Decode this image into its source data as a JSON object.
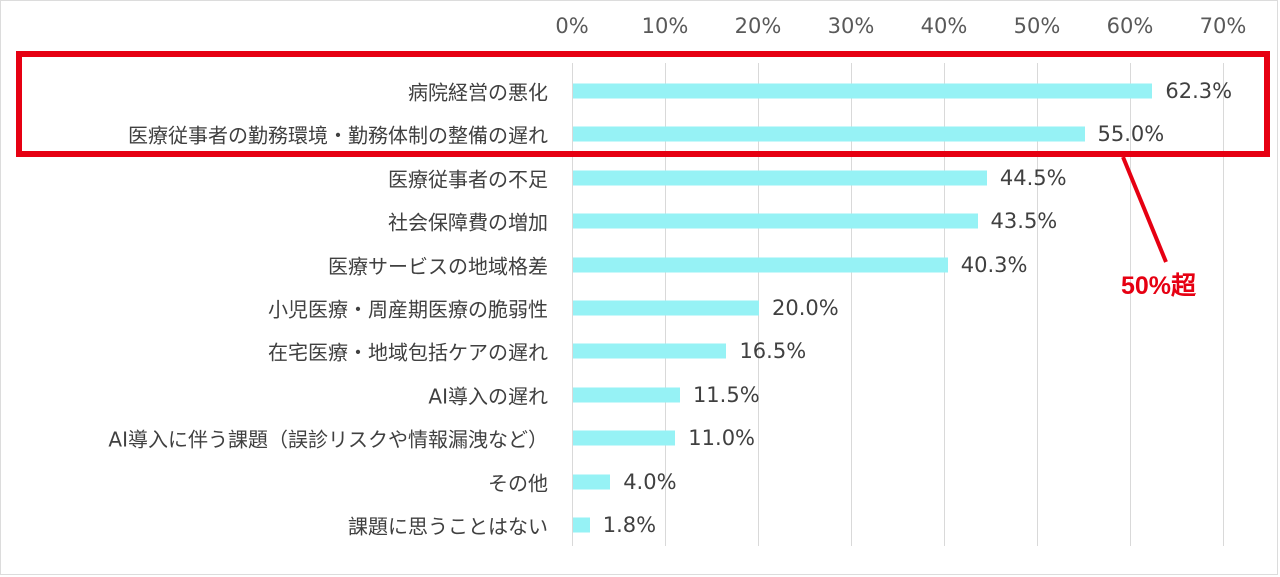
{
  "chart_data": {
    "type": "bar",
    "orientation": "horizontal",
    "title": "",
    "xlabel": "",
    "ylabel": "",
    "xlim": [
      0,
      70
    ],
    "x_ticks": [
      "0%",
      "10%",
      "20%",
      "30%",
      "40%",
      "50%",
      "60%",
      "70%"
    ],
    "grid": true,
    "legend": null,
    "categories": [
      "病院経営の悪化",
      "医療従事者の勤務環境・勤務体制の整備の遅れ",
      "医療従事者の不足",
      "社会保障費の増加",
      "医療サービスの地域格差",
      "小児医療・周産期医療の脆弱性",
      "在宅医療・地域包括ケアの遅れ",
      "AI導入の遅れ",
      "AI導入に伴う課題（誤診リスクや情報漏洩など）",
      "その他",
      "課題に思うことはない"
    ],
    "values": [
      62.3,
      55.0,
      44.5,
      43.5,
      40.3,
      20.0,
      16.5,
      11.5,
      11.0,
      4.0,
      1.8
    ],
    "value_labels": [
      "62.3%",
      "55.0%",
      "44.5%",
      "43.5%",
      "40.3%",
      "20.0%",
      "16.5%",
      "11.5%",
      "11.0%",
      "4.0%",
      "1.8%"
    ],
    "annotations": [
      {
        "type": "box",
        "target_categories": [
          "病院経営の悪化",
          "医療従事者の勤務環境・勤務体制の整備の遅れ"
        ],
        "text": "50%超",
        "color": "#e60012"
      }
    ]
  },
  "colors": {
    "bar": "#96f2f5",
    "highlight": "#e60012",
    "grid": "#d9d9d9",
    "text": "#404040"
  },
  "annotation": {
    "label": "50%超"
  }
}
